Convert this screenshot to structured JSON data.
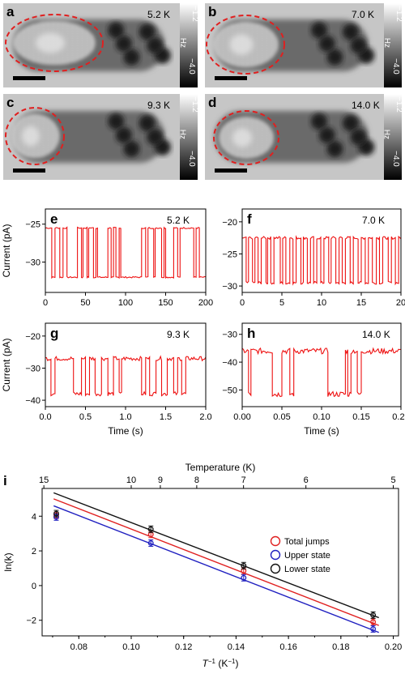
{
  "colors": {
    "trace": "#ee1111",
    "red": "#e02020",
    "blue": "#2020c0",
    "black": "#111111",
    "ellipse": "#e02020"
  },
  "images": [
    {
      "label": "a",
      "temp": "5.2 K"
    },
    {
      "label": "b",
      "temp": "7.0 K"
    },
    {
      "label": "c",
      "temp": "9.3 K"
    },
    {
      "label": "d",
      "temp": "14.0 K"
    }
  ],
  "colorbar": {
    "top": "−1.2",
    "unit": "Hz",
    "bottom": "−4.0"
  },
  "chart_data": [
    {
      "type": "line",
      "panel": "e",
      "temp_label": "5.2 K",
      "ylabel": "Current (pA)",
      "xlabel": "",
      "xlim": [
        0,
        200
      ],
      "ylim": [
        -34,
        -23
      ],
      "xticks": [
        0,
        50,
        100,
        150,
        200
      ],
      "yticks": [
        -25,
        -30
      ],
      "levels": [
        -25.5,
        -32
      ],
      "transitions": [
        0,
        8,
        12,
        18,
        22,
        27,
        40,
        45,
        47,
        52,
        54,
        60,
        63,
        65,
        78,
        82,
        85,
        88,
        92,
        94,
        120,
        125,
        128,
        135,
        137,
        145,
        148,
        150,
        160,
        165,
        168,
        185,
        188,
        192,
        200
      ]
    },
    {
      "type": "line",
      "panel": "f",
      "temp_label": "7.0 K",
      "ylabel": "",
      "xlabel": "",
      "xlim": [
        0,
        20
      ],
      "ylim": [
        -31,
        -18
      ],
      "xticks": [
        0,
        5,
        10,
        15,
        20
      ],
      "yticks": [
        -20,
        -25,
        -30
      ],
      "levels": [
        -22.5,
        -29.5
      ],
      "transitions": [
        0,
        0.5,
        0.8,
        1.3,
        1.6,
        2.0,
        2.4,
        3.0,
        3.2,
        3.6,
        4.0,
        4.8,
        5.1,
        5.5,
        6.0,
        6.4,
        6.8,
        7.4,
        7.7,
        8.2,
        8.6,
        9.0,
        9.4,
        9.9,
        10.3,
        10.9,
        11.2,
        11.8,
        12.2,
        12.6,
        13.0,
        13.6,
        14.0,
        14.6,
        15.0,
        15.5,
        15.9,
        16.4,
        16.9,
        17.3,
        17.7,
        18.4,
        18.8,
        19.3,
        19.7,
        20
      ]
    },
    {
      "type": "line",
      "panel": "g",
      "temp_label": "9.3 K",
      "ylabel": "Current (pA)",
      "xlabel": "Time (s)",
      "xlim": [
        0,
        2
      ],
      "ylim": [
        -42,
        -16
      ],
      "xticks": [
        0.0,
        0.5,
        1.0,
        1.5,
        2.0
      ],
      "yticks": [
        -20,
        -30,
        -40
      ],
      "levels": [
        -27,
        -38
      ],
      "transitions": [
        0,
        0.07,
        0.12,
        0.35,
        0.45,
        0.5,
        0.55,
        0.62,
        0.7,
        0.78,
        0.85,
        0.92,
        0.95,
        1.2,
        1.25,
        1.3,
        1.38,
        1.45,
        1.52,
        1.6,
        1.65,
        1.7,
        1.75,
        2.0
      ]
    },
    {
      "type": "line",
      "panel": "h",
      "temp_label": "14.0 K",
      "ylabel": "",
      "xlabel": "Time (s)",
      "xlim": [
        0,
        0.2
      ],
      "ylim": [
        -56,
        -26
      ],
      "xticks": [
        0.0,
        0.05,
        0.1,
        0.15,
        0.2
      ],
      "xtick_labels": [
        "0.00",
        "0.05",
        "0.10",
        "0.15",
        "0.20"
      ],
      "yticks": [
        -30,
        -40,
        -50
      ],
      "levels": [
        -36,
        -51.5
      ],
      "transitions": [
        0,
        0.008,
        0.011,
        0.038,
        0.05,
        0.06,
        0.065,
        0.108,
        0.13,
        0.133,
        0.137,
        0.145,
        0.15,
        0.2
      ]
    },
    {
      "type": "scatter",
      "panel": "i",
      "xlabel_main": "T",
      "xlabel_sup": "−1",
      "xlabel_unit": "(K",
      "xlabel_unit_sup": "−1",
      "xlabel_close": ")",
      "ylabel": "ln(k)",
      "top_xlabel": "Temperature (K)",
      "xlim": [
        0.066,
        0.202
      ],
      "ylim": [
        -2.9,
        5.6
      ],
      "xticks": [
        0.08,
        0.1,
        0.12,
        0.14,
        0.16,
        0.18,
        0.2
      ],
      "xtick_labels": [
        "0.08",
        "0.10",
        "0.12",
        "0.14",
        "0.16",
        "0.18",
        "0.20"
      ],
      "yticks": [
        -2,
        0,
        2,
        4
      ],
      "ytick_labels": [
        "−2",
        "0",
        "2",
        "4"
      ],
      "top_ticks": [
        15,
        10,
        9,
        8,
        7,
        6,
        5
      ],
      "top_tick_labels": [
        "15",
        "10",
        "9",
        "8",
        "7",
        "6",
        "5"
      ],
      "legend_position": "right",
      "series": [
        {
          "name": "Total jumps",
          "color": "#e02020",
          "x": [
            0.0714,
            0.1075,
            0.1429,
            0.1923
          ],
          "y": [
            4.05,
            2.95,
            0.85,
            -2.1
          ],
          "fit_x": [
            0.0704,
            0.1945
          ],
          "fit_y": [
            5.0,
            -2.3
          ]
        },
        {
          "name": "Upper state",
          "color": "#2020c0",
          "x": [
            0.0714,
            0.1075,
            0.1429,
            0.1923
          ],
          "y": [
            3.95,
            2.45,
            0.45,
            -2.5
          ],
          "fit_x": [
            0.0704,
            0.1945
          ],
          "fit_y": [
            4.6,
            -2.7
          ]
        },
        {
          "name": "Lower state",
          "color": "#111111",
          "x": [
            0.0714,
            0.1075,
            0.1429,
            0.1923
          ],
          "y": [
            4.15,
            3.25,
            1.15,
            -1.7
          ],
          "fit_x": [
            0.0704,
            0.1945
          ],
          "fit_y": [
            5.35,
            -1.85
          ]
        }
      ]
    }
  ]
}
